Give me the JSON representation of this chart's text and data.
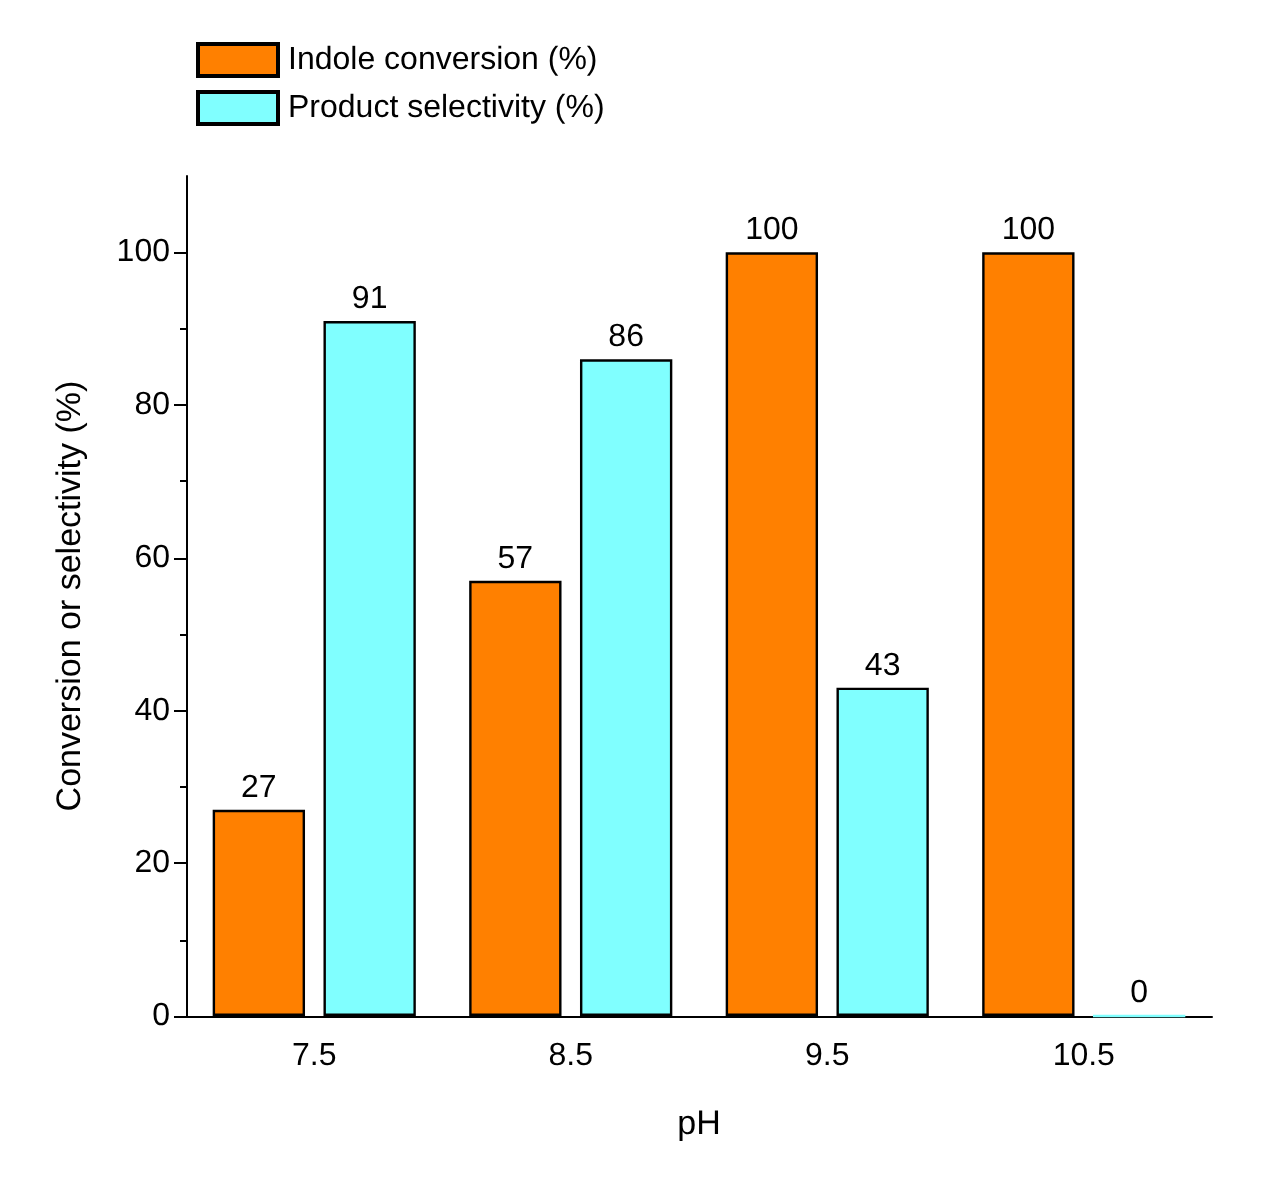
{
  "chart_data": {
    "type": "bar",
    "xlabel": "pH",
    "ylabel": "Conversion or selectivity (%)",
    "categories": [
      "7.5",
      "8.5",
      "9.5",
      "10.5"
    ],
    "series": [
      {
        "name": "Indole conversion (%)",
        "color": "#ff8000",
        "values": [
          27,
          57,
          100,
          100
        ]
      },
      {
        "name": "Product selectivity (%)",
        "color": "#80ffff",
        "values": [
          91,
          86,
          43,
          0
        ]
      }
    ],
    "ylim": [
      0,
      110
    ],
    "yticks": [
      0,
      20,
      40,
      60,
      80,
      100
    ],
    "grid": false,
    "legend": "top left",
    "data_labels": true
  }
}
